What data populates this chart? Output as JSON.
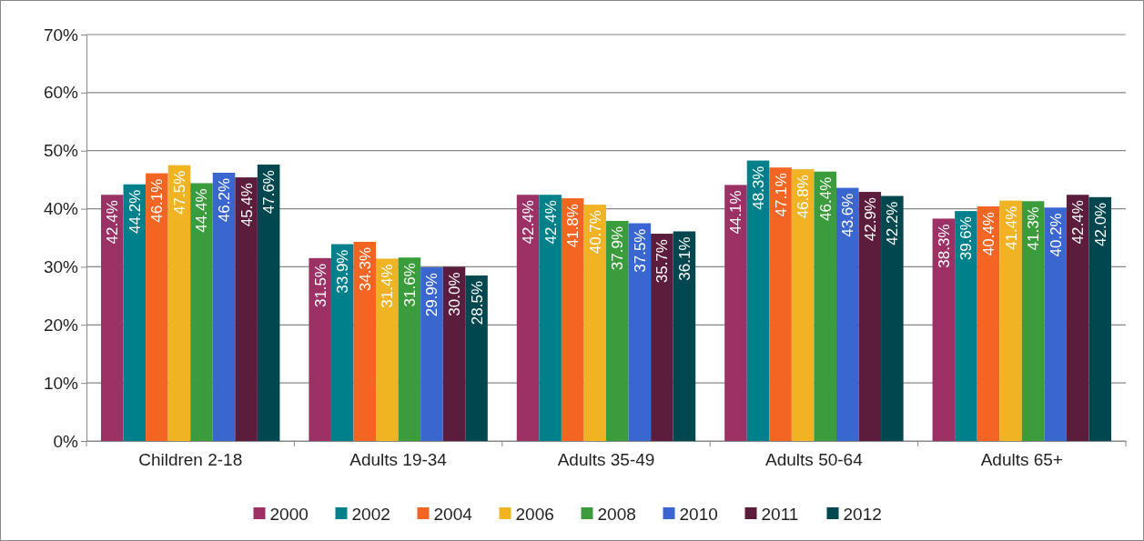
{
  "chart_data": {
    "type": "bar",
    "categories": [
      "Children 2-18",
      "Adults 19-34",
      "Adults 35-49",
      "Adults 50-64",
      "Adults 65+"
    ],
    "series": [
      {
        "name": "2000",
        "color": "#9b3164",
        "values": [
          42.4,
          31.5,
          42.4,
          44.1,
          38.3
        ],
        "value_labels": [
          "42.4%",
          "31.5%",
          "42.4%",
          "44.1%",
          "38.3%"
        ]
      },
      {
        "name": "2002",
        "color": "#00808a",
        "values": [
          44.2,
          33.9,
          42.4,
          48.3,
          39.6
        ],
        "value_labels": [
          "44.2%",
          "33.9%",
          "42.4%",
          "48.3%",
          "39.6%"
        ]
      },
      {
        "name": "2004",
        "color": "#f26522",
        "values": [
          46.1,
          34.3,
          41.8,
          47.1,
          40.4
        ],
        "value_labels": [
          "46.1%",
          "34.3%",
          "41.8%",
          "47.1%",
          "40.4%"
        ]
      },
      {
        "name": "2006",
        "color": "#f0b323",
        "values": [
          47.5,
          31.4,
          40.7,
          46.8,
          41.4
        ],
        "value_labels": [
          "47.5%",
          "31.4%",
          "40.7%",
          "46.8%",
          "41.4%"
        ]
      },
      {
        "name": "2008",
        "color": "#3a9c3a",
        "values": [
          44.4,
          31.6,
          37.9,
          46.4,
          41.3
        ],
        "value_labels": [
          "44.4%",
          "31.6%",
          "37.9%",
          "46.4%",
          "41.3%"
        ]
      },
      {
        "name": "2010",
        "color": "#3a66d0",
        "values": [
          46.2,
          29.9,
          37.5,
          43.6,
          40.2
        ],
        "value_labels": [
          "46.2%",
          "29.9%",
          "37.5%",
          "43.6%",
          "40.2%"
        ]
      },
      {
        "name": "2011",
        "color": "#5c1d3c",
        "values": [
          45.4,
          30.0,
          35.7,
          42.9,
          42.4
        ],
        "value_labels": [
          "45.4%",
          "30.0%",
          "35.7%",
          "42.9%",
          "42.4%"
        ]
      },
      {
        "name": "2012",
        "color": "#00474f",
        "values": [
          47.6,
          28.5,
          36.1,
          42.2,
          42.0
        ],
        "value_labels": [
          "47.6%",
          "28.5%",
          "36.1%",
          "42.2%",
          "42.0%"
        ]
      }
    ],
    "ylim": [
      0,
      70
    ],
    "yticks": [
      {
        "value": 0,
        "label": "0%"
      },
      {
        "value": 10,
        "label": "10%"
      },
      {
        "value": 20,
        "label": "20%"
      },
      {
        "value": 30,
        "label": "30%"
      },
      {
        "value": 40,
        "label": "40%"
      },
      {
        "value": 50,
        "label": "50%"
      },
      {
        "value": 60,
        "label": "60%"
      },
      {
        "value": 70,
        "label": "70%"
      }
    ],
    "grid": "y",
    "legend": "bottom"
  }
}
